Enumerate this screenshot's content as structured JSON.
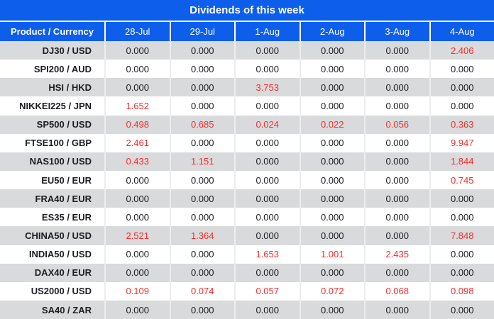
{
  "title": "Dividends of this week",
  "colors": {
    "header_blue": "#0d5eeb",
    "row_gray": "#d9dadc",
    "row_white": "#ffffff",
    "value_red": "#f72d2d",
    "text_dark": "#1d1d22",
    "divider_light": "#ededef",
    "header_text": "#ffffff"
  },
  "table": {
    "product_header": "Product / Currency",
    "date_headers": [
      "28-Jul",
      "29-Jul",
      "1-Aug",
      "2-Aug",
      "3-Aug",
      "4-Aug"
    ],
    "zero_value": "0.000",
    "rows": [
      {
        "product": "DJ30 / USD",
        "values": [
          "0.000",
          "0.000",
          "0.000",
          "0.000",
          "0.000",
          "2.406"
        ]
      },
      {
        "product": "SPI200 / AUD",
        "values": [
          "0.000",
          "0.000",
          "0.000",
          "0.000",
          "0.000",
          "0.000"
        ]
      },
      {
        "product": "HSI / HKD",
        "values": [
          "0.000",
          "0.000",
          "3.753",
          "0.000",
          "0.000",
          "0.000"
        ]
      },
      {
        "product": "NIKKEI225 / JPN",
        "values": [
          "1.652",
          "0.000",
          "0.000",
          "0.000",
          "0.000",
          "0.000"
        ]
      },
      {
        "product": "SP500 / USD",
        "values": [
          "0.498",
          "0.685",
          "0.024",
          "0.022",
          "0.056",
          "0.363"
        ]
      },
      {
        "product": "FTSE100 / GBP",
        "values": [
          "2.461",
          "0.000",
          "0.000",
          "0.000",
          "0.000",
          "9.947"
        ]
      },
      {
        "product": "NAS100 / USD",
        "values": [
          "0.433",
          "1.151",
          "0.000",
          "0.000",
          "0.000",
          "1.844"
        ]
      },
      {
        "product": "EU50 / EUR",
        "values": [
          "0.000",
          "0.000",
          "0.000",
          "0.000",
          "0.000",
          "0.745"
        ]
      },
      {
        "product": "FRA40 / EUR",
        "values": [
          "0.000",
          "0.000",
          "0.000",
          "0.000",
          "0.000",
          "0.000"
        ]
      },
      {
        "product": "ES35 / EUR",
        "values": [
          "0.000",
          "0.000",
          "0.000",
          "0.000",
          "0.000",
          "0.000"
        ]
      },
      {
        "product": "CHINA50 / USD",
        "values": [
          "2.521",
          "1.364",
          "0.000",
          "0.000",
          "0.000",
          "7.848"
        ]
      },
      {
        "product": "INDIA50 / USD",
        "values": [
          "0.000",
          "0.000",
          "1.653",
          "1.001",
          "2.435",
          "0.000"
        ]
      },
      {
        "product": "DAX40 / EUR",
        "values": [
          "0.000",
          "0.000",
          "0.000",
          "0.000",
          "0.000",
          "0.000"
        ]
      },
      {
        "product": "US2000 / USD",
        "values": [
          "0.109",
          "0.074",
          "0.057",
          "0.072",
          "0.068",
          "0.098"
        ]
      },
      {
        "product": "SA40 / ZAR",
        "values": [
          "0.000",
          "0.000",
          "0.000",
          "0.000",
          "0.000",
          "0.000"
        ]
      }
    ]
  }
}
